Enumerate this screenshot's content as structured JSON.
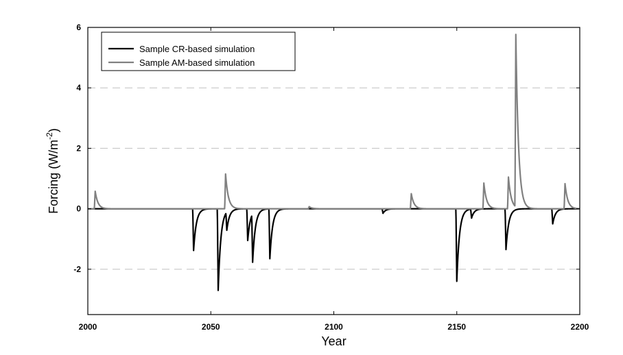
{
  "chart_data": {
    "type": "line",
    "title": "",
    "xlabel": "Year",
    "ylabel_main": "Forcing (W/m",
    "ylabel_sup": "-2",
    "ylabel_tail": ")",
    "xlim": [
      2000,
      2200
    ],
    "ylim": [
      -3.5,
      6
    ],
    "x_ticks": [
      2000,
      2050,
      2100,
      2150,
      2200
    ],
    "y_ticks": [
      -2,
      0,
      2,
      4,
      6
    ],
    "x_tick_labels": [
      "2000",
      "2050",
      "2100",
      "2150",
      "2200"
    ],
    "y_tick_labels": [
      "-2",
      "0",
      "2",
      "4",
      "6"
    ],
    "grid": "horizontal dashed at -2, 2, 4",
    "legend_position": "top-left",
    "series": [
      {
        "name": "Sample CR-based simulation",
        "color": "#000000",
        "events": [
          {
            "year": 2043,
            "value": -1.38
          },
          {
            "year": 2053,
            "value": -2.7
          },
          {
            "year": 2056.5,
            "value": -0.6
          },
          {
            "year": 2065,
            "value": -1.05
          },
          {
            "year": 2067,
            "value": -1.6
          },
          {
            "year": 2074,
            "value": -1.65
          },
          {
            "year": 2120,
            "value": -0.15
          },
          {
            "year": 2150,
            "value": -2.4
          },
          {
            "year": 2156,
            "value": -0.3
          },
          {
            "year": 2170,
            "value": -1.35
          },
          {
            "year": 2189,
            "value": -0.5
          }
        ]
      },
      {
        "name": "Sample AM-based simulation",
        "color": "#808080",
        "events": [
          {
            "year": 2003,
            "value": 0.58
          },
          {
            "year": 2056,
            "value": 1.15
          },
          {
            "year": 2090,
            "value": 0.07
          },
          {
            "year": 2131.5,
            "value": 0.5
          },
          {
            "year": 2161,
            "value": 0.85
          },
          {
            "year": 2171,
            "value": 1.05
          },
          {
            "year": 2174,
            "value": 5.7
          },
          {
            "year": 2194,
            "value": 0.83
          }
        ]
      }
    ]
  }
}
